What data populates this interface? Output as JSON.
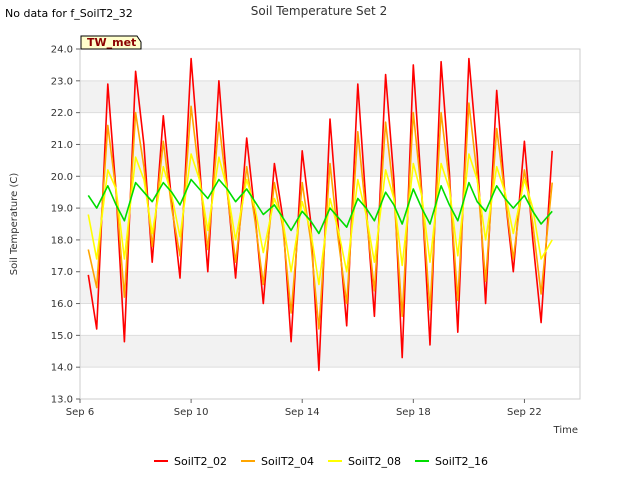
{
  "header": {
    "no_data_text": "No data for f_SoilT2_32"
  },
  "badge": {
    "label": "TW_met"
  },
  "chart_data": {
    "type": "line",
    "title": "Soil Temperature Set 2",
    "xlabel": "Time",
    "ylabel": "Soil Temperature (C)",
    "ylim": [
      13.0,
      24.0
    ],
    "xlim": [
      6,
      24
    ],
    "grid": true,
    "legend_position": "bottom-center",
    "yticks": [
      "13.0",
      "14.0",
      "15.0",
      "16.0",
      "17.0",
      "18.0",
      "19.0",
      "20.0",
      "21.0",
      "22.0",
      "23.0",
      "24.0"
    ],
    "xticks": [
      {
        "label": "Sep 6",
        "value": 6
      },
      {
        "label": "Sep 10",
        "value": 10
      },
      {
        "label": "Sep 14",
        "value": 14
      },
      {
        "label": "Sep 18",
        "value": 18
      },
      {
        "label": "Sep 22",
        "value": 22
      }
    ],
    "series": [
      {
        "name": "SoilT2_02",
        "color": "#ff0000",
        "x": [
          6.3,
          6.6,
          7.0,
          7.3,
          7.6,
          8.0,
          8.3,
          8.6,
          9.0,
          9.3,
          9.6,
          10.0,
          10.3,
          10.6,
          11.0,
          11.3,
          11.6,
          12.0,
          12.3,
          12.6,
          13.0,
          13.3,
          13.6,
          14.0,
          14.3,
          14.6,
          15.0,
          15.3,
          15.6,
          16.0,
          16.3,
          16.6,
          17.0,
          17.3,
          17.6,
          18.0,
          18.3,
          18.6,
          19.0,
          19.3,
          19.6,
          20.0,
          20.3,
          20.6,
          21.0,
          21.3,
          21.6,
          22.0,
          22.3,
          22.6,
          23.0
        ],
        "y": [
          16.9,
          15.2,
          22.9,
          19.5,
          14.8,
          23.3,
          21.0,
          17.3,
          21.9,
          19.2,
          16.8,
          23.7,
          20.4,
          17.0,
          23.0,
          19.6,
          16.8,
          21.2,
          18.8,
          16.0,
          20.4,
          18.7,
          14.8,
          20.8,
          18.6,
          13.9,
          21.8,
          18.4,
          15.3,
          22.9,
          19.1,
          15.6,
          23.2,
          19.9,
          14.3,
          23.5,
          19.5,
          14.7,
          23.6,
          20.1,
          15.1,
          23.7,
          20.7,
          16.0,
          22.7,
          19.4,
          17.0,
          21.1,
          18.0,
          15.4,
          20.8
        ]
      },
      {
        "name": "SoilT2_04",
        "color": "#ffa500",
        "x": [
          6.3,
          6.6,
          7.0,
          7.3,
          7.6,
          8.0,
          8.3,
          8.6,
          9.0,
          9.3,
          9.6,
          10.0,
          10.3,
          10.6,
          11.0,
          11.3,
          11.6,
          12.0,
          12.3,
          12.6,
          13.0,
          13.3,
          13.6,
          14.0,
          14.3,
          14.6,
          15.0,
          15.3,
          15.6,
          16.0,
          16.3,
          16.6,
          17.0,
          17.3,
          17.6,
          18.0,
          18.3,
          18.6,
          19.0,
          19.3,
          19.6,
          20.0,
          20.3,
          20.6,
          21.0,
          21.3,
          21.6,
          22.0,
          22.3,
          22.6,
          23.0
        ],
        "y": [
          17.7,
          16.5,
          21.6,
          19.5,
          16.2,
          22.0,
          20.3,
          17.8,
          21.1,
          19.0,
          17.5,
          22.2,
          20.0,
          17.7,
          21.7,
          19.5,
          17.3,
          20.3,
          18.6,
          16.6,
          19.8,
          18.4,
          15.7,
          19.8,
          18.0,
          15.2,
          20.4,
          18.0,
          16.0,
          21.4,
          18.8,
          16.4,
          21.7,
          19.4,
          15.6,
          22.0,
          19.4,
          15.8,
          22.0,
          19.8,
          16.1,
          22.3,
          20.0,
          16.7,
          21.5,
          19.4,
          17.4,
          20.2,
          18.5,
          16.3,
          19.8
        ]
      },
      {
        "name": "SoilT2_08",
        "color": "#ffff00",
        "x": [
          6.3,
          6.6,
          7.0,
          7.3,
          7.6,
          8.0,
          8.3,
          8.6,
          9.0,
          9.3,
          9.6,
          10.0,
          10.3,
          10.6,
          11.0,
          11.3,
          11.6,
          12.0,
          12.3,
          12.6,
          13.0,
          13.3,
          13.6,
          14.0,
          14.3,
          14.6,
          15.0,
          15.3,
          15.6,
          16.0,
          16.3,
          16.6,
          17.0,
          17.3,
          17.6,
          18.0,
          18.3,
          18.6,
          19.0,
          19.3,
          19.6,
          20.0,
          20.3,
          20.6,
          21.0,
          21.3,
          21.6,
          22.0,
          22.3,
          22.6,
          23.0
        ],
        "y": [
          18.8,
          17.4,
          20.2,
          19.6,
          17.4,
          20.6,
          19.9,
          18.2,
          20.3,
          19.4,
          18.1,
          20.7,
          19.9,
          18.3,
          20.6,
          19.6,
          18.0,
          19.9,
          19.0,
          17.6,
          19.3,
          18.6,
          17.0,
          19.2,
          18.3,
          16.6,
          19.3,
          18.3,
          17.0,
          19.9,
          18.8,
          17.3,
          20.2,
          19.3,
          17.2,
          20.4,
          19.4,
          17.3,
          20.4,
          19.6,
          17.5,
          20.7,
          19.9,
          18.0,
          20.3,
          19.5,
          18.2,
          19.9,
          19.0,
          17.4,
          18.0
        ]
      },
      {
        "name": "SoilT2_16",
        "color": "#00dd00",
        "x": [
          6.3,
          6.6,
          7.0,
          7.3,
          7.6,
          8.0,
          8.3,
          8.6,
          9.0,
          9.3,
          9.6,
          10.0,
          10.3,
          10.6,
          11.0,
          11.3,
          11.6,
          12.0,
          12.3,
          12.6,
          13.0,
          13.3,
          13.6,
          14.0,
          14.3,
          14.6,
          15.0,
          15.3,
          15.6,
          16.0,
          16.3,
          16.6,
          17.0,
          17.3,
          17.6,
          18.0,
          18.3,
          18.6,
          19.0,
          19.3,
          19.6,
          20.0,
          20.3,
          20.6,
          21.0,
          21.3,
          21.6,
          22.0,
          22.3,
          22.6,
          23.0
        ],
        "y": [
          19.4,
          19.0,
          19.7,
          19.1,
          18.6,
          19.8,
          19.5,
          19.2,
          19.8,
          19.5,
          19.1,
          19.9,
          19.6,
          19.3,
          19.9,
          19.6,
          19.2,
          19.6,
          19.2,
          18.8,
          19.1,
          18.7,
          18.3,
          18.9,
          18.6,
          18.2,
          19.0,
          18.7,
          18.4,
          19.3,
          19.0,
          18.6,
          19.5,
          19.1,
          18.5,
          19.6,
          19.0,
          18.5,
          19.7,
          19.1,
          18.6,
          19.8,
          19.2,
          18.9,
          19.7,
          19.3,
          19.0,
          19.4,
          18.9,
          18.5,
          18.9
        ]
      }
    ]
  }
}
